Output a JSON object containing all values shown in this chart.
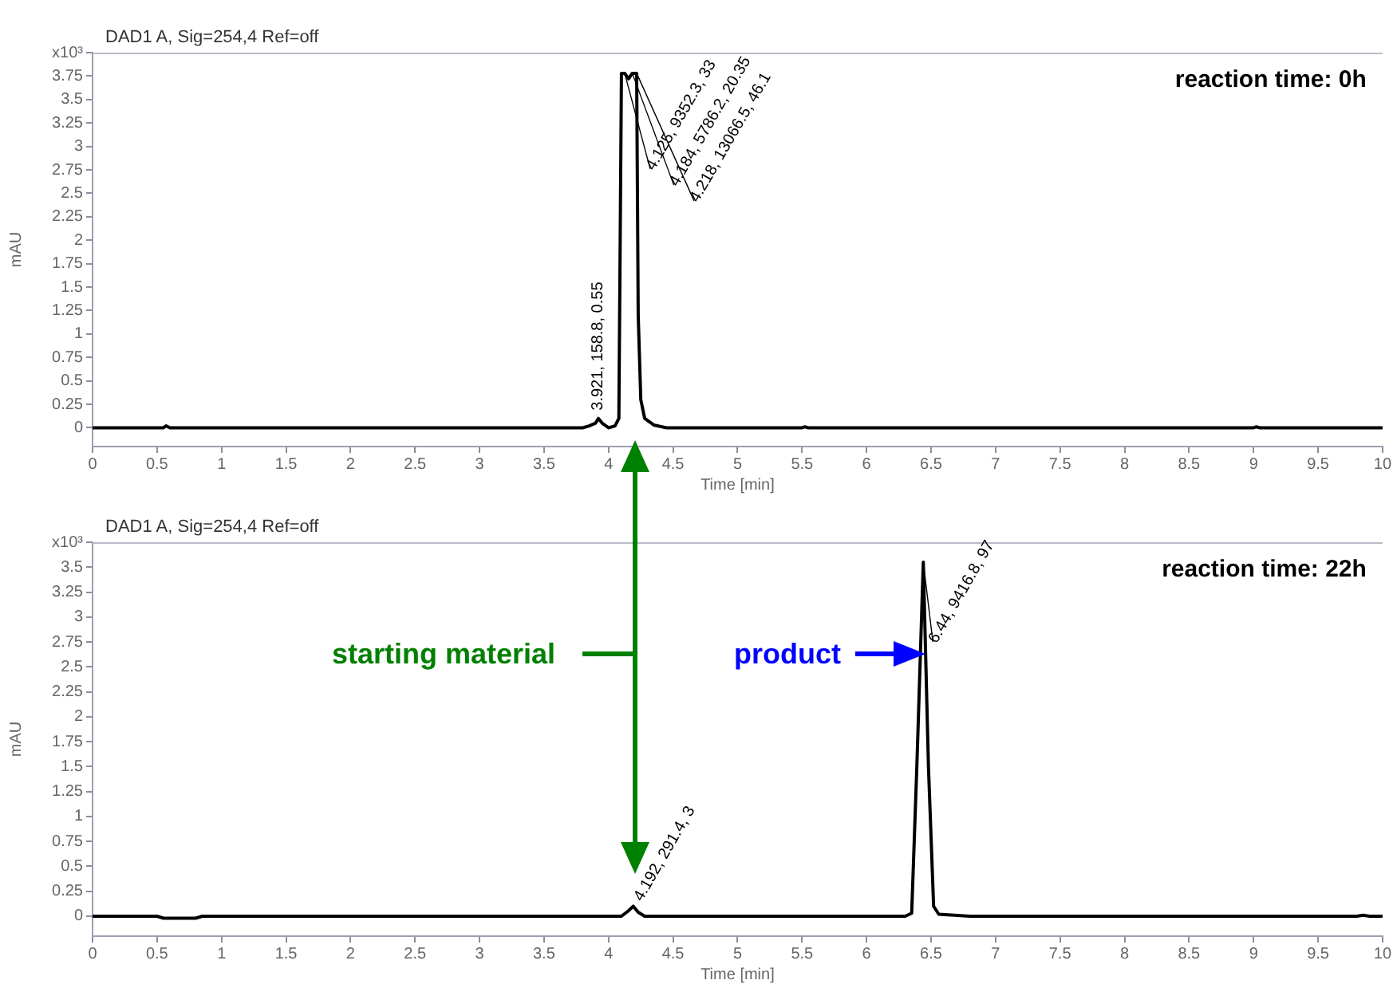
{
  "chart_data": [
    {
      "type": "line",
      "title": "DAD1 A, Sig=254,4 Ref=off",
      "xlabel": "Time [min]",
      "ylabel": "mAU",
      "x": [
        0,
        0.55,
        0.57,
        0.6,
        3.8,
        3.85,
        3.9,
        3.921,
        3.95,
        4.0,
        4.05,
        4.08,
        4.1,
        4.125,
        4.155,
        4.184,
        4.218,
        4.23,
        4.25,
        4.28,
        4.35,
        4.45,
        5.5,
        5.52,
        5.55,
        9,
        9.02,
        9.05,
        10
      ],
      "series": [
        {
          "color": "#000000",
          "values": [
            0,
            0,
            0.02,
            0,
            0,
            0.02,
            0.05,
            0.1,
            0.05,
            0,
            0.02,
            0.1,
            3.78,
            3.78,
            3.72,
            3.78,
            3.78,
            1.2,
            0.3,
            0.1,
            0.03,
            0,
            0,
            0.01,
            0,
            0,
            0.01,
            0,
            0
          ]
        }
      ],
      "xlim": [
        0,
        10
      ],
      "xticks": [
        0,
        0.5,
        1,
        1.5,
        2,
        2.5,
        3,
        3.5,
        4,
        4.5,
        5,
        5.5,
        6,
        6.5,
        7,
        7.5,
        8,
        8.5,
        9,
        9.5,
        10
      ],
      "ylim": [
        -0.2,
        4
      ],
      "yticks": [
        0,
        0.25,
        0.5,
        0.75,
        1,
        1.25,
        1.5,
        1.75,
        2,
        2.25,
        2.5,
        2.75,
        3,
        3.25,
        3.5,
        3.75,
        {
          "value": 4,
          "label": "x10³"
        }
      ],
      "grid": false,
      "legend": false,
      "marker": "none",
      "line_style": "solid",
      "annotations": [
        "reaction time: 0h",
        {
          "text": "3.921, 158.8, 0.55",
          "x": 3.921,
          "y": 0.1
        },
        {
          "text": "4.125, 9352.3, 33",
          "x": 4.125,
          "y": 3.78
        },
        {
          "text": "4.184, 5786.2, 20.35",
          "x": 4.184,
          "y": 3.78
        },
        {
          "text": "4.218, 13066.5, 46.1",
          "x": 4.218,
          "y": 3.78
        }
      ]
    },
    {
      "type": "line",
      "title": "DAD1 A, Sig=254,4 Ref=off",
      "xlabel": "Time [min]",
      "ylabel": "mAU",
      "x": [
        0,
        0.5,
        0.55,
        0.8,
        0.85,
        4.1,
        4.15,
        4.192,
        4.23,
        4.28,
        6.3,
        6.35,
        6.39,
        6.44,
        6.48,
        6.52,
        6.56,
        6.8,
        9.8,
        9.85,
        9.9,
        10
      ],
      "series": [
        {
          "color": "#000000",
          "values": [
            0,
            0,
            -0.02,
            -0.02,
            0,
            0,
            0.05,
            0.1,
            0.04,
            0,
            0,
            0.03,
            1.5,
            3.55,
            1.5,
            0.1,
            0.02,
            0,
            0,
            0.01,
            0,
            0
          ]
        }
      ],
      "xlim": [
        0,
        10
      ],
      "xticks": [
        0,
        0.5,
        1,
        1.5,
        2,
        2.5,
        3,
        3.5,
        4,
        4.5,
        5,
        5.5,
        6,
        6.5,
        7,
        7.5,
        8,
        8.5,
        9,
        9.5,
        10
      ],
      "ylim": [
        -0.2,
        3.75
      ],
      "yticks": [
        0,
        0.25,
        0.5,
        0.75,
        1,
        1.25,
        1.5,
        1.75,
        2,
        2.25,
        2.5,
        2.75,
        3,
        3.25,
        3.5,
        {
          "value": 3.75,
          "label": "x10³"
        }
      ],
      "grid": false,
      "legend": false,
      "marker": "none",
      "line_style": "solid",
      "annotations": [
        "reaction time: 22h",
        "starting material",
        "product",
        {
          "text": "4.192, 291.4, 3",
          "x": 4.192,
          "y": 0.1
        },
        {
          "text": "6.44, 9416.8, 97",
          "x": 6.44,
          "y": 3.55
        }
      ]
    }
  ]
}
